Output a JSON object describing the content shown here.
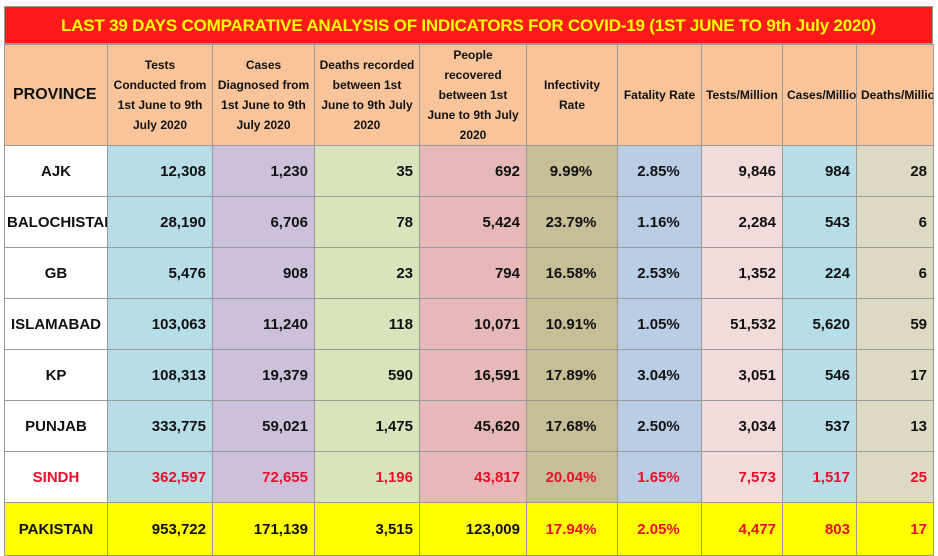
{
  "title": "LAST 39 DAYS COMPARATIVE ANALYSIS OF INDICATORS FOR COVID-19 (1ST JUNE TO 9th July 2020)",
  "headers": [
    "PROVINCE",
    "Tests Conducted from 1st June to 9th July 2020",
    "Cases Diagnosed from 1st June to 9th July 2020",
    "Deaths recorded between 1st June to 9th July 2020",
    "People recovered between 1st June to 9th July 2020",
    "Infectivity Rate",
    "Fatality Rate",
    "Tests/Million",
    "Cases/Million",
    "Deaths/Million"
  ],
  "rows": [
    [
      "AJK",
      "12,308",
      "1,230",
      "35",
      "692",
      "9.99%",
      "2.85%",
      "9,846",
      "984",
      "28"
    ],
    [
      "BALOCHISTAN",
      "28,190",
      "6,706",
      "78",
      "5,424",
      "23.79%",
      "1.16%",
      "2,284",
      "543",
      "6"
    ],
    [
      "GB",
      "5,476",
      "908",
      "23",
      "794",
      "16.58%",
      "2.53%",
      "1,352",
      "224",
      "6"
    ],
    [
      "ISLAMABAD",
      "103,063",
      "11,240",
      "118",
      "10,071",
      "10.91%",
      "1.05%",
      "51,532",
      "5,620",
      "59"
    ],
    [
      "KP",
      "108,313",
      "19,379",
      "590",
      "16,591",
      "17.89%",
      "3.04%",
      "3,051",
      "546",
      "17"
    ],
    [
      "PUNJAB",
      "333,775",
      "59,021",
      "1,475",
      "45,620",
      "17.68%",
      "2.50%",
      "3,034",
      "537",
      "13"
    ],
    [
      "SINDH",
      "362,597",
      "72,655",
      "1,196",
      "43,817",
      "20.04%",
      "1.65%",
      "7,573",
      "1,517",
      "25"
    ]
  ],
  "total": [
    "PAKISTAN",
    "953,722",
    "171,139",
    "3,515",
    "123,009",
    "17.94%",
    "2.05%",
    "4,477",
    "803",
    "17"
  ],
  "colors": {
    "title_bg": "#ff1a1a",
    "title_text": "#ffff00",
    "header_bg": "#f9c49a",
    "highlight_text": "#e8102a",
    "total_bg": "#ffff00"
  }
}
